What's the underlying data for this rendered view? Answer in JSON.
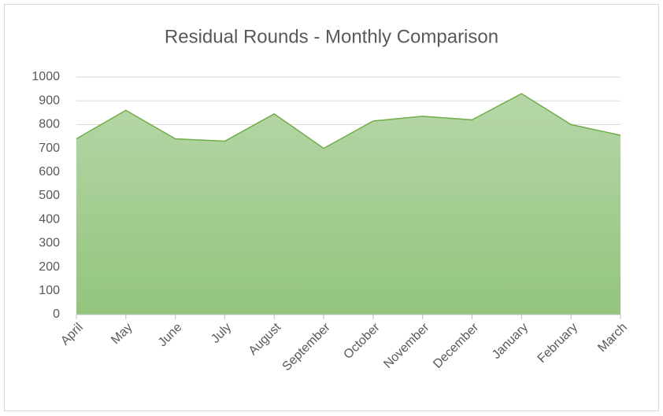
{
  "chart_data": {
    "type": "area",
    "title": "Residual Rounds - Monthly Comparison",
    "categories": [
      "April",
      "May",
      "June",
      "July",
      "August",
      "September",
      "October",
      "November",
      "December",
      "January",
      "February",
      "March"
    ],
    "values": [
      740,
      860,
      740,
      730,
      845,
      700,
      815,
      835,
      820,
      930,
      800,
      755
    ],
    "color": "#70ad47",
    "ylim": [
      0,
      1000
    ],
    "yticks": [
      0,
      100,
      200,
      300,
      400,
      500,
      600,
      700,
      800,
      900,
      1000
    ],
    "grid": true
  }
}
